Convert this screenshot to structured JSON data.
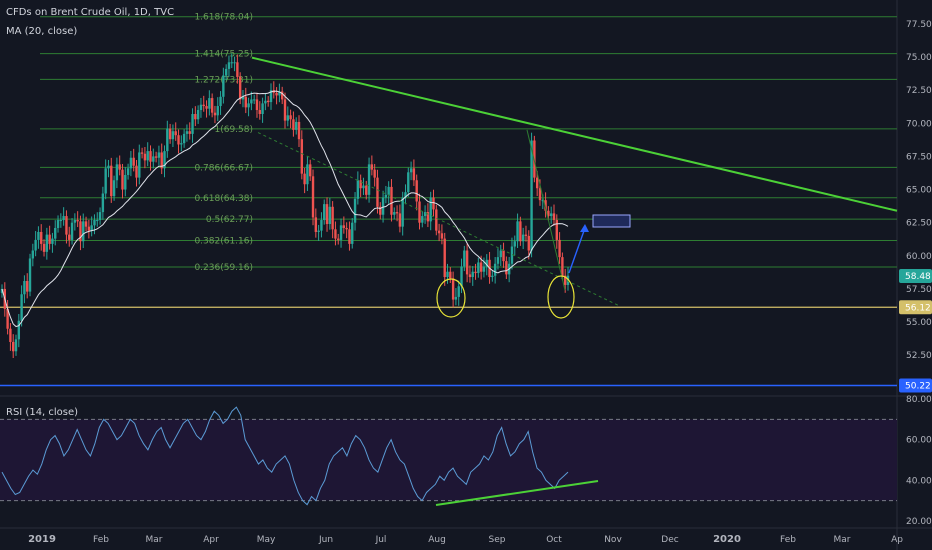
{
  "header": {
    "title": "CFDs on Brent Crude Oil, 1D, TVC",
    "ma_label": "MA (20, close)",
    "rsi_label": "RSI (14, close)"
  },
  "colors": {
    "background": "#131722",
    "bull": "#26a69a",
    "bear": "#ef5350",
    "ma": "#e0e3eb",
    "fib": "#2e7d32",
    "fib_label": "#6b9e58",
    "trendline": "#4cd137",
    "support": "#d4c06a",
    "low_line": "#2962ff",
    "rsi_line": "#5b9bd5",
    "rsi_band": "#1e1634",
    "price_tag": "#26a69a"
  },
  "chart_data": [
    {
      "type": "candlestick",
      "title": "CFDs on Brent Crude Oil, 1D, TVC",
      "x_labels": [
        "2019",
        "Feb",
        "Mar",
        "Apr",
        "May",
        "Jun",
        "Jul",
        "Aug",
        "Sep",
        "Oct",
        "Nov",
        "Dec",
        "2020",
        "Feb",
        "Mar",
        "Ap"
      ],
      "y_ticks": [
        "77.50",
        "75.00",
        "72.50",
        "70.00",
        "67.50",
        "65.00",
        "62.50",
        "60.00",
        "57.50",
        "55.00",
        "52.50"
      ],
      "ylim": [
        49.5,
        79.3
      ],
      "price_tags": [
        {
          "label": "58.48",
          "value": 58.48,
          "color": "#26a69a"
        },
        {
          "label": "56.12",
          "value": 56.12,
          "color": "#d4c06a"
        },
        {
          "label": "50.22",
          "value": 50.22,
          "color": "#2962ff"
        }
      ],
      "fib_levels": [
        {
          "label": "1.618(78.04)",
          "value": 78.04
        },
        {
          "label": "1.414(75.25)",
          "value": 75.25
        },
        {
          "label": "1.272(73.31)",
          "value": 73.31
        },
        {
          "label": "1(69.58)",
          "value": 69.58
        },
        {
          "label": "0.786(66.67)",
          "value": 66.67
        },
        {
          "label": "0.618(64.38)",
          "value": 64.38
        },
        {
          "label": "0.5(62.77)",
          "value": 62.77
        },
        {
          "label": "0.382(61.16)",
          "value": 61.16
        },
        {
          "label": "0.236(59.16)",
          "value": 59.16
        }
      ],
      "candles_close": [
        57.5,
        56,
        54.5,
        53.5,
        52.8,
        53.7,
        55.1,
        57.1,
        58.1,
        57.3,
        59.8,
        60.4,
        61.2,
        61.8,
        60.9,
        60.3,
        61.6,
        60.9,
        61.3,
        62.1,
        62.7,
        62.7,
        63.0,
        61.6,
        61.2,
        62.5,
        62.7,
        62.6,
        61.1,
        62.6,
        62.2,
        61.9,
        62.3,
        62.7,
        62.7,
        63.3,
        64.7,
        66.6,
        66.8,
        64.5,
        65.7,
        66.9,
        66.5,
        65.0,
        66.1,
        66.6,
        67.4,
        66.8,
        65.9,
        67.8,
        67.7,
        67.2,
        67.9,
        67.1,
        67.5,
        67.4,
        67.8,
        66.6,
        67.9,
        69.6,
        68.8,
        69.4,
        69.1,
        68.4,
        68.5,
        69.2,
        69.4,
        69.2,
        70.7,
        70.3,
        71.0,
        71.4,
        71.3,
        71.1,
        71.9,
        70.8,
        70.6,
        71.3,
        72.0,
        73.6,
        74.1,
        74.6,
        74.6,
        74.6,
        73.5,
        71.8,
        72.0,
        71.2,
        71.5,
        71.8,
        71.8,
        71.0,
        70.7,
        71.5,
        71.7,
        71.6,
        72.5,
        72.3,
        72.1,
        72.4,
        71.8,
        70.2,
        70.6,
        70.3,
        69.5,
        70.1,
        68.8,
        66.2,
        65.4,
        66.9,
        66.0,
        62.9,
        61.8,
        61.9,
        62.7,
        63.9,
        62.4,
        63.7,
        62.0,
        61.3,
        61.2,
        62.3,
        62.1,
        62.0,
        60.9,
        62.5,
        64.3,
        65.7,
        65.1,
        65.3,
        64.6,
        66.9,
        66.5,
        65.9,
        63.7,
        63.1,
        64.4,
        64.6,
        65.2,
        63.1,
        63.3,
        63.2,
        62.2,
        64.4,
        64.8,
        66.3,
        66.6,
        65.7,
        64.1,
        62.5,
        63.0,
        63.3,
        62.6,
        64.4,
        63.5,
        61.9,
        61.7,
        61.3,
        58.4,
        58.8,
        58.3,
        56.7,
        56.9,
        57.7,
        59.2,
        60.4,
        58.6,
        58.4,
        58.8,
        58.7,
        59.5,
        58.8,
        59.2,
        59.7,
        58.4,
        58.5,
        59.4,
        59.9,
        60.4,
        59.6,
        58.6,
        59.4,
        60.7,
        61.1,
        62.6,
        61.1,
        61.6,
        61.5,
        60.4,
        68.7,
        65.9,
        65.1,
        64.2,
        64.2,
        63.4,
        63.0,
        63.2,
        62.7,
        61.2,
        59.9,
        58.5,
        57.8,
        58.5
      ]
    },
    {
      "type": "line",
      "title": "RSI (14, close)",
      "y_ticks": [
        "80.00",
        "60.00",
        "40.00",
        "20.00"
      ],
      "ylim": [
        17,
        81
      ],
      "band": [
        30,
        70
      ],
      "values": [
        44,
        40,
        36,
        33,
        34,
        38,
        42,
        45,
        43,
        48,
        55,
        60,
        62,
        58,
        52,
        55,
        60,
        65,
        60,
        55,
        52,
        58,
        66,
        70,
        68,
        64,
        60,
        62,
        66,
        70,
        68,
        62,
        58,
        55,
        60,
        64,
        66,
        60,
        56,
        60,
        64,
        68,
        70,
        66,
        62,
        60,
        64,
        70,
        74,
        72,
        68,
        70,
        74,
        76,
        72,
        60,
        56,
        52,
        48,
        50,
        46,
        44,
        48,
        50,
        52,
        48,
        40,
        34,
        30,
        28,
        32,
        30,
        36,
        40,
        48,
        52,
        54,
        56,
        52,
        58,
        62,
        60,
        56,
        50,
        46,
        44,
        50,
        56,
        60,
        54,
        50,
        48,
        42,
        36,
        32,
        30,
        34,
        36,
        38,
        42,
        40,
        44,
        46,
        42,
        40,
        38,
        44,
        46,
        48,
        52,
        50,
        54,
        62,
        66,
        58,
        52,
        54,
        58,
        60,
        64,
        54,
        46,
        44,
        40,
        38,
        36,
        40,
        42,
        44
      ]
    }
  ]
}
